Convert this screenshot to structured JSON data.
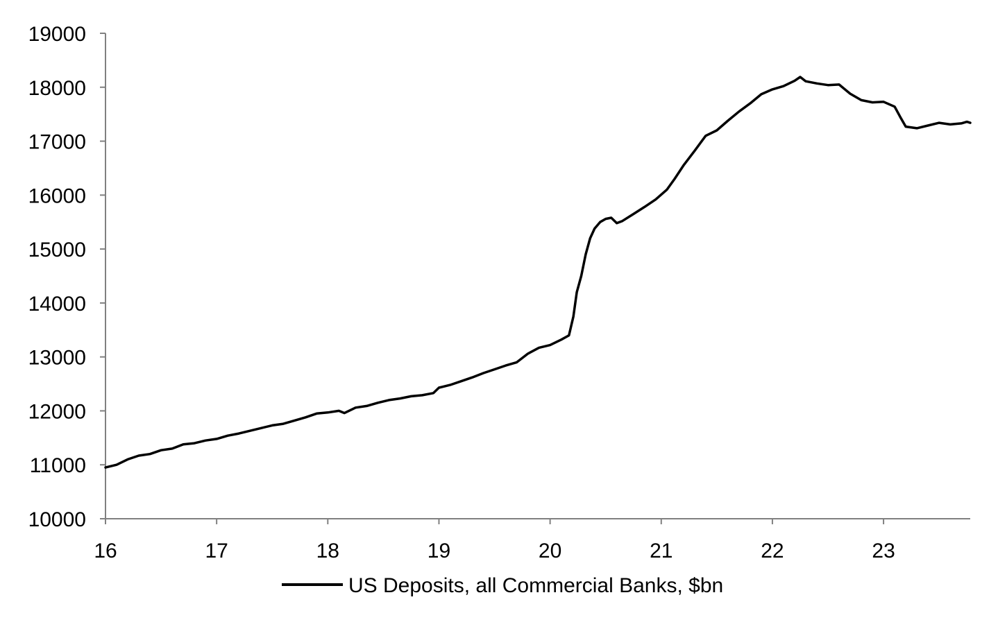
{
  "chart_data": {
    "type": "line",
    "title": "",
    "xlabel": "",
    "ylabel": "",
    "xlim": [
      16,
      23.78
    ],
    "ylim": [
      10000,
      19000
    ],
    "grid": false,
    "legend": "bottom-center",
    "x_tick_labels": [
      "16",
      "17",
      "18",
      "19",
      "20",
      "21",
      "22",
      "23"
    ],
    "y_tick_labels": [
      "10000",
      "11000",
      "12000",
      "13000",
      "14000",
      "15000",
      "16000",
      "17000",
      "18000",
      "19000"
    ],
    "series": [
      {
        "name": "US Deposits, all Commercial Banks, $bn",
        "color": "#000000",
        "points": [
          [
            16.0,
            10950
          ],
          [
            16.1,
            11000
          ],
          [
            16.2,
            11100
          ],
          [
            16.3,
            11170
          ],
          [
            16.4,
            11200
          ],
          [
            16.5,
            11270
          ],
          [
            16.6,
            11300
          ],
          [
            16.7,
            11380
          ],
          [
            16.8,
            11400
          ],
          [
            16.9,
            11450
          ],
          [
            17.0,
            11480
          ],
          [
            17.1,
            11540
          ],
          [
            17.2,
            11580
          ],
          [
            17.3,
            11630
          ],
          [
            17.4,
            11680
          ],
          [
            17.5,
            11730
          ],
          [
            17.6,
            11760
          ],
          [
            17.7,
            11820
          ],
          [
            17.8,
            11880
          ],
          [
            17.9,
            11950
          ],
          [
            18.0,
            11970
          ],
          [
            18.1,
            12000
          ],
          [
            18.15,
            11960
          ],
          [
            18.25,
            12060
          ],
          [
            18.35,
            12090
          ],
          [
            18.45,
            12150
          ],
          [
            18.55,
            12200
          ],
          [
            18.65,
            12230
          ],
          [
            18.75,
            12270
          ],
          [
            18.85,
            12290
          ],
          [
            18.95,
            12330
          ],
          [
            19.0,
            12430
          ],
          [
            19.1,
            12480
          ],
          [
            19.2,
            12550
          ],
          [
            19.3,
            12620
          ],
          [
            19.4,
            12700
          ],
          [
            19.5,
            12770
          ],
          [
            19.6,
            12840
          ],
          [
            19.7,
            12900
          ],
          [
            19.8,
            13060
          ],
          [
            19.9,
            13170
          ],
          [
            20.0,
            13220
          ],
          [
            20.1,
            13320
          ],
          [
            20.17,
            13400
          ],
          [
            20.21,
            13750
          ],
          [
            20.24,
            14200
          ],
          [
            20.28,
            14500
          ],
          [
            20.32,
            14900
          ],
          [
            20.36,
            15200
          ],
          [
            20.4,
            15380
          ],
          [
            20.45,
            15500
          ],
          [
            20.5,
            15560
          ],
          [
            20.55,
            15580
          ],
          [
            20.6,
            15480
          ],
          [
            20.65,
            15520
          ],
          [
            20.75,
            15650
          ],
          [
            20.85,
            15780
          ],
          [
            20.95,
            15920
          ],
          [
            21.05,
            16100
          ],
          [
            21.12,
            16300
          ],
          [
            21.2,
            16550
          ],
          [
            21.3,
            16820
          ],
          [
            21.4,
            17100
          ],
          [
            21.5,
            17200
          ],
          [
            21.6,
            17380
          ],
          [
            21.7,
            17550
          ],
          [
            21.8,
            17700
          ],
          [
            21.9,
            17870
          ],
          [
            22.0,
            17960
          ],
          [
            22.1,
            18020
          ],
          [
            22.2,
            18120
          ],
          [
            22.25,
            18190
          ],
          [
            22.3,
            18110
          ],
          [
            22.4,
            18070
          ],
          [
            22.5,
            18040
          ],
          [
            22.6,
            18050
          ],
          [
            22.7,
            17880
          ],
          [
            22.8,
            17760
          ],
          [
            22.9,
            17720
          ],
          [
            23.0,
            17730
          ],
          [
            23.1,
            17640
          ],
          [
            23.15,
            17450
          ],
          [
            23.2,
            17270
          ],
          [
            23.3,
            17240
          ],
          [
            23.4,
            17290
          ],
          [
            23.5,
            17340
          ],
          [
            23.6,
            17310
          ],
          [
            23.7,
            17330
          ],
          [
            23.75,
            17360
          ],
          [
            23.78,
            17340
          ]
        ]
      }
    ]
  }
}
